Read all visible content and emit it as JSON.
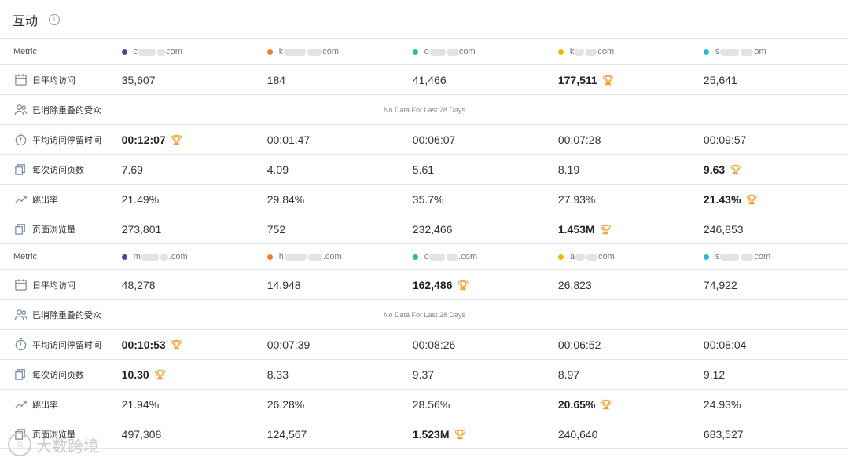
{
  "header": {
    "title": "互动",
    "info_icon": "info-icon"
  },
  "metric_label": "Metric",
  "no_data_text": "No Data For Last 28 Days",
  "groups": [
    {
      "sites": [
        {
          "prefix": "c",
          "suffix": "com",
          "color": "#3d4f8c"
        },
        {
          "prefix": "k",
          "suffix": "com",
          "color": "#f07a2b"
        },
        {
          "prefix": "o",
          "suffix": "com",
          "color": "#2bbf8a"
        },
        {
          "prefix": "k",
          "suffix": "com",
          "color": "#f5b800"
        },
        {
          "prefix": "s",
          "suffix": "om",
          "color": "#22b8d8"
        }
      ],
      "rows": {
        "visits": {
          "label": "日平均访问",
          "values": [
            "35,607",
            "184",
            "41,466",
            "177,511",
            "25,641"
          ],
          "best": 3
        },
        "audience": {
          "label": "已消除重叠的受众"
        },
        "duration": {
          "label": "平均访问停留时间",
          "values": [
            "00:12:07",
            "00:01:47",
            "00:06:07",
            "00:07:28",
            "00:09:57"
          ],
          "best": 0
        },
        "pages": {
          "label": "每次访问页数",
          "values": [
            "7.69",
            "4.09",
            "5.61",
            "8.19",
            "9.63"
          ],
          "best": 4
        },
        "bounce": {
          "label": "跳出率",
          "values": [
            "21.49%",
            "29.84%",
            "35.7%",
            "27.93%",
            "21.43%"
          ],
          "best": 4
        },
        "views": {
          "label": "页面浏览量",
          "values": [
            "273,801",
            "752",
            "232,466",
            "1.453M",
            "246,853"
          ],
          "best": 3
        }
      }
    },
    {
      "sites": [
        {
          "prefix": "m",
          "suffix": ".com",
          "color": "#3d4f8c"
        },
        {
          "prefix": "h",
          "suffix": ".com",
          "color": "#f07a2b"
        },
        {
          "prefix": "c",
          "suffix": ".com",
          "color": "#2bbf8a"
        },
        {
          "prefix": "a",
          "suffix": "com",
          "color": "#f5b800"
        },
        {
          "prefix": "s",
          "suffix": "com",
          "color": "#22b8d8"
        }
      ],
      "rows": {
        "visits": {
          "label": "日平均访问",
          "values": [
            "48,278",
            "14,948",
            "162,486",
            "26,823",
            "74,922"
          ],
          "best": 2
        },
        "audience": {
          "label": "已消除重叠的受众"
        },
        "duration": {
          "label": "平均访问停留时间",
          "values": [
            "00:10:53",
            "00:07:39",
            "00:08:26",
            "00:06:52",
            "00:08:04"
          ],
          "best": 0
        },
        "pages": {
          "label": "每次访问页数",
          "values": [
            "10.30",
            "8.33",
            "9.37",
            "8.97",
            "9.12"
          ],
          "best": 0
        },
        "bounce": {
          "label": "跳出率",
          "values": [
            "21.94%",
            "26.28%",
            "28.56%",
            "20.65%",
            "24.93%"
          ],
          "best": 3
        },
        "views": {
          "label": "页面浏览量",
          "values": [
            "497,308",
            "124,567",
            "1.523M",
            "240,640",
            "683,527"
          ],
          "best": 2
        }
      }
    }
  ],
  "watermark": "大数跨境"
}
